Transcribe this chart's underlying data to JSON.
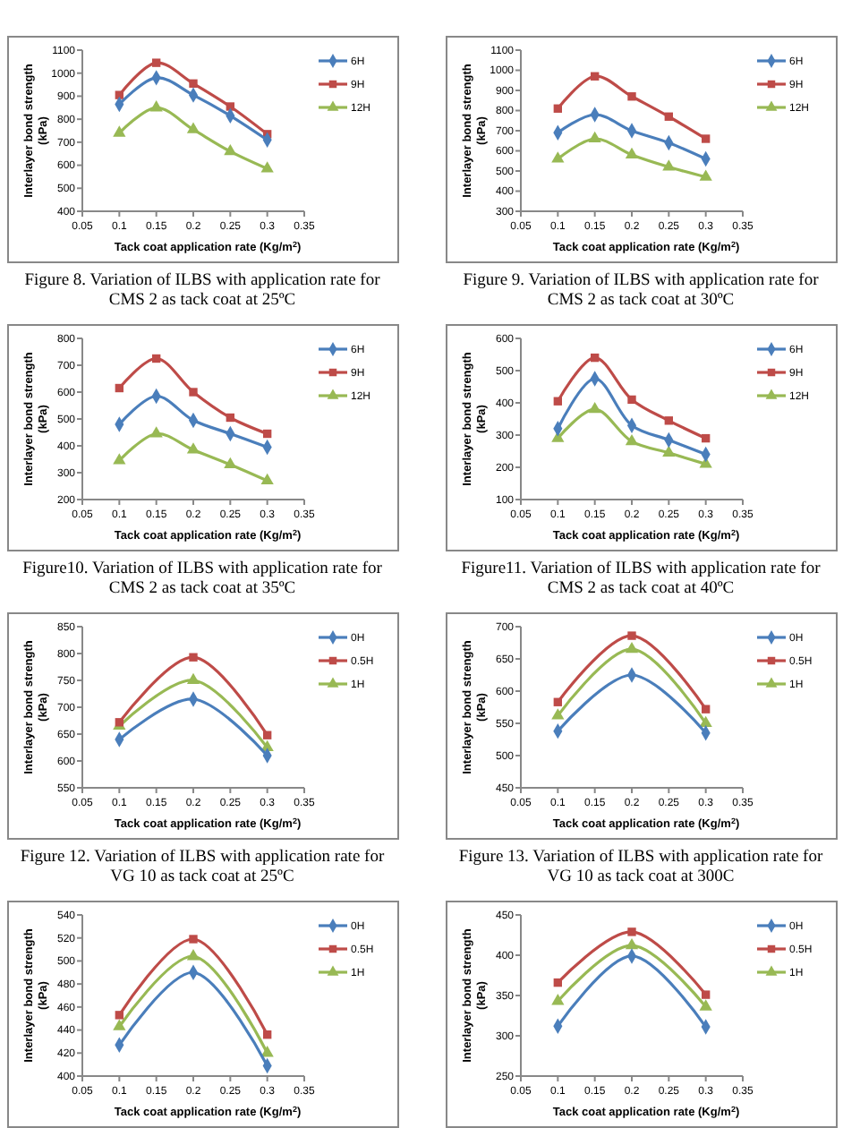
{
  "chart_data": [
    {
      "type": "line",
      "xlabel": "Tack coat application rate (Kg/m$^{2}$)",
      "ylabel": "Interlayer bond strength (kPa)",
      "x": [
        0.1,
        0.15,
        0.2,
        0.25,
        0.3
      ],
      "xlim": [
        0.05,
        0.35
      ],
      "xticks": [
        0.05,
        0.1,
        0.15,
        0.2,
        0.25,
        0.3,
        0.35
      ],
      "ylim": [
        400,
        1100
      ],
      "yticks": [
        400,
        500,
        600,
        700,
        800,
        900,
        1000,
        1100
      ],
      "legend": "right",
      "annotations": [
        "Figure 8. Variation of ILBS with application rate for CMS 2 as tack coat at 25ºC"
      ],
      "series": [
        {
          "name": "6H",
          "color": "#4a7ebb",
          "marker": "diamond",
          "values": [
            865,
            980,
            905,
            815,
            710
          ]
        },
        {
          "name": "9H",
          "color": "#be4b48",
          "marker": "square",
          "values": [
            905,
            1045,
            955,
            855,
            735
          ]
        },
        {
          "name": "12H",
          "color": "#98b954",
          "marker": "triangle",
          "values": [
            740,
            850,
            755,
            660,
            585
          ]
        }
      ]
    },
    {
      "type": "line",
      "xlabel": "Tack coat application rate (Kg/m$^{2}$)",
      "ylabel": "Interlayer bond strength (kPa)",
      "x": [
        0.1,
        0.15,
        0.2,
        0.25,
        0.3
      ],
      "xlim": [
        0.05,
        0.35
      ],
      "xticks": [
        0.05,
        0.1,
        0.15,
        0.2,
        0.25,
        0.3,
        0.35
      ],
      "ylim": [
        300,
        1100
      ],
      "yticks": [
        300,
        400,
        500,
        600,
        700,
        800,
        900,
        1000,
        1100
      ],
      "legend": "right",
      "annotations": [
        "Figure 9. Variation of ILBS with application rate for CMS 2 as tack coat at 30ºC"
      ],
      "series": [
        {
          "name": "6H",
          "color": "#4a7ebb",
          "marker": "diamond",
          "values": [
            690,
            780,
            700,
            640,
            560
          ]
        },
        {
          "name": "9H",
          "color": "#be4b48",
          "marker": "square",
          "values": [
            810,
            970,
            870,
            770,
            660
          ]
        },
        {
          "name": "12H",
          "color": "#98b954",
          "marker": "triangle",
          "values": [
            560,
            660,
            580,
            520,
            470
          ]
        }
      ]
    },
    {
      "type": "line",
      "xlabel": "Tack coat application rate (Kg/m$^{2}$)",
      "ylabel": "Interlayer bond strength (kPa)",
      "x": [
        0.1,
        0.15,
        0.2,
        0.25,
        0.3
      ],
      "xlim": [
        0.05,
        0.35
      ],
      "xticks": [
        0.05,
        0.1,
        0.15,
        0.2,
        0.25,
        0.3,
        0.35
      ],
      "ylim": [
        200,
        800
      ],
      "yticks": [
        200,
        300,
        400,
        500,
        600,
        700,
        800
      ],
      "legend": "right",
      "annotations": [
        "Figure10. Variation of ILBS with application rate for CMS 2 as tack coat at 35ºC"
      ],
      "series": [
        {
          "name": "6H",
          "color": "#4a7ebb",
          "marker": "diamond",
          "values": [
            480,
            585,
            495,
            445,
            395
          ]
        },
        {
          "name": "9H",
          "color": "#be4b48",
          "marker": "square",
          "values": [
            615,
            725,
            600,
            505,
            445
          ]
        },
        {
          "name": "12H",
          "color": "#98b954",
          "marker": "triangle",
          "values": [
            345,
            445,
            385,
            330,
            270
          ]
        }
      ]
    },
    {
      "type": "line",
      "xlabel": "Tack coat application rate (Kg/m$^{2}$)",
      "ylabel": "Interlayer bond strength (kPa)",
      "x": [
        0.1,
        0.15,
        0.2,
        0.25,
        0.3
      ],
      "xlim": [
        0.05,
        0.35
      ],
      "xticks": [
        0.05,
        0.1,
        0.15,
        0.2,
        0.25,
        0.3,
        0.35
      ],
      "ylim": [
        100,
        600
      ],
      "yticks": [
        100,
        200,
        300,
        400,
        500,
        600
      ],
      "legend": "right",
      "annotations": [
        "Figure11. Variation of ILBS with application rate for CMS 2 as tack coat at 40ºC"
      ],
      "series": [
        {
          "name": "6H",
          "color": "#4a7ebb",
          "marker": "diamond",
          "values": [
            320,
            475,
            330,
            285,
            240
          ]
        },
        {
          "name": "9H",
          "color": "#be4b48",
          "marker": "square",
          "values": [
            405,
            540,
            410,
            345,
            290
          ]
        },
        {
          "name": "12H",
          "color": "#98b954",
          "marker": "triangle",
          "values": [
            290,
            380,
            280,
            245,
            210
          ]
        }
      ]
    },
    {
      "type": "line",
      "xlabel": "Tack coat application rate (Kg/m$^{2}$)",
      "ylabel": "Interlayer bond strength (kPa)",
      "x": [
        0.1,
        0.2,
        0.3
      ],
      "xlim": [
        0.05,
        0.35
      ],
      "xticks": [
        0.05,
        0.1,
        0.15,
        0.2,
        0.25,
        0.3,
        0.35
      ],
      "ylim": [
        550,
        850
      ],
      "yticks": [
        550,
        600,
        650,
        700,
        750,
        800,
        850
      ],
      "legend": "right",
      "annotations": [
        "Figure 12. Variation of ILBS with application rate for VG 10 as tack coat at 25ºC"
      ],
      "series": [
        {
          "name": "0H",
          "color": "#4a7ebb",
          "marker": "diamond",
          "values": [
            640,
            715,
            610
          ]
        },
        {
          "name": "0.5H",
          "color": "#be4b48",
          "marker": "square",
          "values": [
            672,
            793,
            648
          ]
        },
        {
          "name": "1H",
          "color": "#98b954",
          "marker": "triangle",
          "values": [
            665,
            750,
            625
          ]
        }
      ]
    },
    {
      "type": "line",
      "xlabel": "Tack coat application rate (Kg/m$^{2}$)",
      "ylabel": "Interlayer bond strength (kPa)",
      "x": [
        0.1,
        0.2,
        0.3
      ],
      "xlim": [
        0.05,
        0.35
      ],
      "xticks": [
        0.05,
        0.1,
        0.15,
        0.2,
        0.25,
        0.3,
        0.35
      ],
      "ylim": [
        450,
        700
      ],
      "yticks": [
        450,
        500,
        550,
        600,
        650,
        700
      ],
      "legend": "right",
      "annotations": [
        "Figure 13. Variation of ILBS with application rate for VG 10 as tack coat at 300C"
      ],
      "series": [
        {
          "name": "0H",
          "color": "#4a7ebb",
          "marker": "diamond",
          "values": [
            538,
            625,
            535
          ]
        },
        {
          "name": "0.5H",
          "color": "#be4b48",
          "marker": "square",
          "values": [
            583,
            686,
            572
          ]
        },
        {
          "name": "1H",
          "color": "#98b954",
          "marker": "triangle",
          "values": [
            562,
            665,
            550
          ]
        }
      ]
    },
    {
      "type": "line",
      "xlabel": "Tack coat application rate (Kg/m$^{2}$)",
      "ylabel": "Interlayer bond strength (kPa)",
      "x": [
        0.1,
        0.2,
        0.3
      ],
      "xlim": [
        0.05,
        0.35
      ],
      "xticks": [
        0.05,
        0.1,
        0.15,
        0.2,
        0.25,
        0.3,
        0.35
      ],
      "ylim": [
        400,
        540
      ],
      "yticks": [
        400,
        420,
        440,
        460,
        480,
        500,
        520,
        540
      ],
      "legend": "right",
      "series": [
        {
          "name": "0H",
          "color": "#4a7ebb",
          "marker": "diamond",
          "values": [
            427,
            490,
            409
          ]
        },
        {
          "name": "0.5H",
          "color": "#be4b48",
          "marker": "square",
          "values": [
            453,
            519,
            436
          ]
        },
        {
          "name": "1H",
          "color": "#98b954",
          "marker": "triangle",
          "values": [
            443,
            504,
            420
          ]
        }
      ]
    },
    {
      "type": "line",
      "xlabel": "Tack coat application rate (Kg/m$^{2}$)",
      "ylabel": "Interlayer bond strength (kPa)",
      "x": [
        0.1,
        0.2,
        0.3
      ],
      "xlim": [
        0.05,
        0.35
      ],
      "xticks": [
        0.05,
        0.1,
        0.15,
        0.2,
        0.25,
        0.3,
        0.35
      ],
      "ylim": [
        250,
        450
      ],
      "yticks": [
        250,
        300,
        350,
        400,
        450
      ],
      "legend": "right",
      "series": [
        {
          "name": "0H",
          "color": "#4a7ebb",
          "marker": "diamond",
          "values": [
            312,
            399,
            311
          ]
        },
        {
          "name": "0.5H",
          "color": "#be4b48",
          "marker": "square",
          "values": [
            366,
            429,
            351
          ]
        },
        {
          "name": "1H",
          "color": "#98b954",
          "marker": "triangle",
          "values": [
            343,
            412,
            336
          ]
        }
      ]
    }
  ]
}
